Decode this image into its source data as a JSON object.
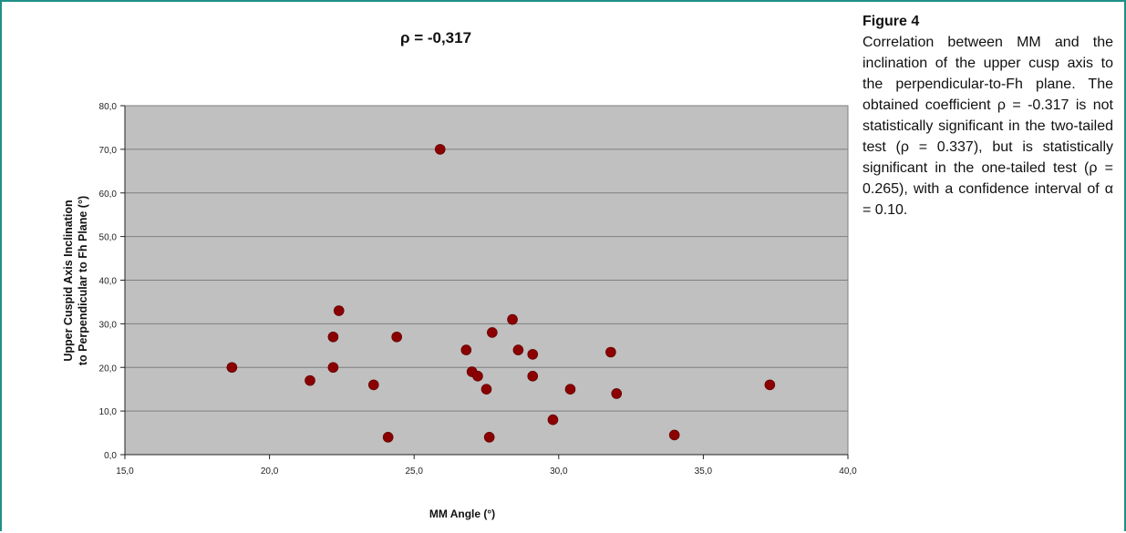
{
  "figure": {
    "label": "Figure 4",
    "caption": "Correlation between MM and the inclination of the upper cusp axis to the perpendicular-to-Fh plane. The obtained coefficient ρ = -0.317 is not statistically significant in the two-tailed test (ρ = 0.337), but is statistically significant in the one-tailed test (ρ = 0.265), with a confidence interval of α = 0.10."
  },
  "colors": {
    "frame": "#1f8f86",
    "plot_area": "#c0c0c0",
    "gridline": "#7f7f7f",
    "marker": "#8b0000"
  },
  "chart_data": {
    "type": "scatter",
    "title": "ρ = -0,317",
    "xlabel": "MM Angle (°)",
    "ylabel_lines": [
      "Upper Cuspid Axis Inclination",
      "to Perpendicular to Fh Plane (°)"
    ],
    "xlim": [
      15.0,
      40.0
    ],
    "ylim": [
      0.0,
      80.0
    ],
    "xticks": [
      "15,0",
      "20,0",
      "25,0",
      "30,0",
      "35,0",
      "40,0"
    ],
    "yticks": [
      "0,0",
      "10,0",
      "20,0",
      "30,0",
      "40,0",
      "50,0",
      "60,0",
      "70,0",
      "80,0"
    ],
    "grid": "horizontal",
    "legend": "none",
    "series": [
      {
        "points": [
          [
            18.7,
            20.0
          ],
          [
            21.4,
            17.0
          ],
          [
            22.2,
            27.0
          ],
          [
            22.2,
            20.0
          ],
          [
            22.4,
            33.0
          ],
          [
            23.6,
            16.0
          ],
          [
            24.1,
            4.0
          ],
          [
            24.4,
            27.0
          ],
          [
            25.9,
            70.0
          ],
          [
            26.8,
            24.0
          ],
          [
            27.0,
            19.0
          ],
          [
            27.2,
            18.0
          ],
          [
            27.5,
            15.0
          ],
          [
            27.6,
            4.0
          ],
          [
            27.7,
            28.0
          ],
          [
            28.4,
            31.0
          ],
          [
            28.6,
            24.0
          ],
          [
            29.1,
            23.0
          ],
          [
            29.1,
            18.0
          ],
          [
            29.8,
            8.0
          ],
          [
            30.4,
            15.0
          ],
          [
            31.8,
            23.5
          ],
          [
            32.0,
            14.0
          ],
          [
            34.0,
            4.5
          ],
          [
            37.3,
            16.0
          ]
        ]
      }
    ]
  }
}
